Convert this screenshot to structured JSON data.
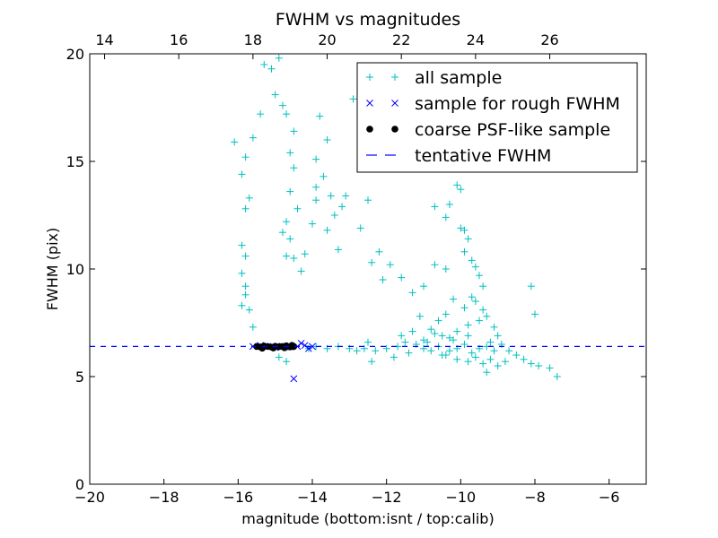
{
  "chart_data": {
    "type": "scatter",
    "title": "FWHM vs magnitudes",
    "xlabel": "magnitude (bottom:isnt / top:calib)",
    "ylabel": "FWHM (pix)",
    "xlim": [
      -20,
      -5
    ],
    "ylim": [
      0,
      20
    ],
    "x_ticks": [
      -20,
      -18,
      -16,
      -14,
      -12,
      -10,
      -8,
      -6
    ],
    "x_tick_labels": [
      "−20",
      "−18",
      "−16",
      "−14",
      "−12",
      "−10",
      "−8",
      "−6"
    ],
    "y_ticks": [
      0,
      5,
      10,
      15,
      20
    ],
    "y_tick_labels": [
      "0",
      "5",
      "10",
      "15",
      "20"
    ],
    "top_axis": {
      "label_note": "calib",
      "ticks": [
        14,
        16,
        18,
        20,
        22,
        24,
        26
      ],
      "tick_labels": [
        "14",
        "16",
        "18",
        "20",
        "22",
        "24",
        "26"
      ],
      "offset": 33.6
    },
    "legend_position": "upper-right",
    "series": [
      {
        "name": "all sample",
        "marker": "plus",
        "color": "#00BFBF",
        "points": [
          [
            -14.9,
            19.8
          ],
          [
            -15.1,
            19.3
          ],
          [
            -15.3,
            19.5
          ],
          [
            -15.0,
            18.1
          ],
          [
            -14.8,
            17.6
          ],
          [
            -14.7,
            17.2
          ],
          [
            -14.5,
            16.4
          ],
          [
            -15.4,
            17.2
          ],
          [
            -15.6,
            16.1
          ],
          [
            -15.8,
            15.2
          ],
          [
            -16.1,
            15.9
          ],
          [
            -15.9,
            14.4
          ],
          [
            -15.7,
            13.3
          ],
          [
            -15.8,
            12.8
          ],
          [
            -15.9,
            11.1
          ],
          [
            -15.8,
            10.6
          ],
          [
            -15.9,
            9.8
          ],
          [
            -15.8,
            9.2
          ],
          [
            -15.8,
            8.8
          ],
          [
            -15.9,
            8.3
          ],
          [
            -15.7,
            8.1
          ],
          [
            -15.6,
            7.3
          ],
          [
            -14.6,
            15.4
          ],
          [
            -14.5,
            14.7
          ],
          [
            -14.6,
            13.6
          ],
          [
            -14.4,
            12.8
          ],
          [
            -14.7,
            12.2
          ],
          [
            -14.6,
            11.4
          ],
          [
            -14.8,
            11.7
          ],
          [
            -14.7,
            10.6
          ],
          [
            -14.5,
            10.5
          ],
          [
            -14.3,
            9.9
          ],
          [
            -14.2,
            10.7
          ],
          [
            -13.8,
            17.1
          ],
          [
            -13.6,
            16.0
          ],
          [
            -13.9,
            15.1
          ],
          [
            -13.7,
            14.3
          ],
          [
            -13.5,
            13.4
          ],
          [
            -13.9,
            13.2
          ],
          [
            -13.4,
            12.5
          ],
          [
            -13.6,
            11.8
          ],
          [
            -13.2,
            12.9
          ],
          [
            -14.0,
            12.1
          ],
          [
            -13.9,
            13.8
          ],
          [
            -13.3,
            10.9
          ],
          [
            -13.1,
            13.4
          ],
          [
            -12.9,
            17.9
          ],
          [
            -12.1,
            16.0
          ],
          [
            -12.5,
            13.2
          ],
          [
            -12.7,
            11.9
          ],
          [
            -12.2,
            10.8
          ],
          [
            -12.4,
            10.3
          ],
          [
            -12.1,
            9.5
          ],
          [
            -11.9,
            10.2
          ],
          [
            -11.6,
            9.6
          ],
          [
            -11.3,
            8.9
          ],
          [
            -11.0,
            9.2
          ],
          [
            -10.7,
            10.2
          ],
          [
            -10.4,
            10.0
          ],
          [
            -10.7,
            12.9
          ],
          [
            -10.3,
            13.0
          ],
          [
            -10.1,
            13.9
          ],
          [
            -10.0,
            13.7
          ],
          [
            -10.4,
            12.4
          ],
          [
            -10.0,
            11.9
          ],
          [
            -9.9,
            11.8
          ],
          [
            -9.8,
            11.4
          ],
          [
            -9.7,
            10.4
          ],
          [
            -9.9,
            10.8
          ],
          [
            -9.6,
            10.1
          ],
          [
            -9.5,
            9.7
          ],
          [
            -9.4,
            9.2
          ],
          [
            -9.7,
            8.7
          ],
          [
            -9.9,
            8.2
          ],
          [
            -10.2,
            8.6
          ],
          [
            -10.4,
            7.9
          ],
          [
            -10.6,
            7.6
          ],
          [
            -10.8,
            7.2
          ],
          [
            -11.1,
            7.8
          ],
          [
            -11.3,
            7.1
          ],
          [
            -11.6,
            6.9
          ],
          [
            -9.6,
            8.5
          ],
          [
            -9.4,
            8.1
          ],
          [
            -9.3,
            7.8
          ],
          [
            -9.1,
            7.3
          ],
          [
            -9.0,
            6.9
          ],
          [
            -9.2,
            6.6
          ],
          [
            -9.5,
            7.6
          ],
          [
            -9.8,
            7.4
          ],
          [
            -10.1,
            7.1
          ],
          [
            -10.3,
            6.8
          ],
          [
            -10.5,
            6.9
          ],
          [
            -10.7,
            7.0
          ],
          [
            -11.0,
            6.7
          ],
          [
            -8.9,
            6.5
          ],
          [
            -8.7,
            6.2
          ],
          [
            -8.5,
            6.0
          ],
          [
            -8.3,
            5.8
          ],
          [
            -8.1,
            5.6
          ],
          [
            -7.9,
            5.5
          ],
          [
            -7.6,
            5.4
          ],
          [
            -7.4,
            5.0
          ],
          [
            -8.0,
            7.9
          ],
          [
            -8.1,
            9.2
          ],
          [
            -9.2,
            5.8
          ],
          [
            -9.4,
            5.6
          ],
          [
            -9.6,
            5.9
          ],
          [
            -9.8,
            5.7
          ],
          [
            -10.1,
            5.8
          ],
          [
            -10.4,
            6.0
          ],
          [
            -9.3,
            5.2
          ],
          [
            -9.0,
            5.5
          ],
          [
            -8.8,
            5.7
          ],
          [
            -12.6,
            6.3
          ],
          [
            -12.3,
            6.2
          ],
          [
            -12.0,
            6.3
          ],
          [
            -11.7,
            6.4
          ],
          [
            -11.4,
            6.1
          ],
          [
            -11.2,
            6.5
          ],
          [
            -11.0,
            6.3
          ],
          [
            -10.8,
            6.2
          ],
          [
            -10.6,
            6.4
          ],
          [
            -10.5,
            6.0
          ],
          [
            -10.3,
            6.2
          ],
          [
            -10.1,
            6.3
          ],
          [
            -9.9,
            6.5
          ],
          [
            -9.7,
            6.1
          ],
          [
            -9.5,
            6.3
          ],
          [
            -9.3,
            6.4
          ],
          [
            -9.1,
            6.2
          ],
          [
            -13.0,
            6.3
          ],
          [
            -13.3,
            6.4
          ],
          [
            -13.6,
            6.3
          ],
          [
            -13.9,
            6.4
          ],
          [
            -14.1,
            6.3
          ],
          [
            -12.8,
            6.2
          ],
          [
            -11.8,
            5.9
          ],
          [
            -11.5,
            6.6
          ],
          [
            -12.4,
            5.7
          ],
          [
            -14.7,
            5.7
          ],
          [
            -14.9,
            5.9
          ],
          [
            -12.5,
            6.6
          ],
          [
            -10.9,
            6.6
          ],
          [
            -10.2,
            6.7
          ],
          [
            -9.8,
            6.9
          ]
        ]
      },
      {
        "name": "sample for rough FWHM",
        "marker": "x",
        "color": "#0000FF",
        "points": [
          [
            -15.6,
            6.4
          ],
          [
            -15.4,
            6.45
          ],
          [
            -15.2,
            6.4
          ],
          [
            -15.0,
            6.35
          ],
          [
            -14.8,
            6.42
          ],
          [
            -14.6,
            6.38
          ],
          [
            -14.4,
            6.4
          ],
          [
            -14.2,
            6.45
          ],
          [
            -14.1,
            6.3
          ],
          [
            -14.0,
            6.4
          ],
          [
            -14.3,
            6.55
          ],
          [
            -14.5,
            4.9
          ]
        ]
      },
      {
        "name": "coarse PSF-like sample",
        "marker": "circle",
        "color": "#000000",
        "points": [
          [
            -15.5,
            6.4
          ],
          [
            -15.4,
            6.38
          ],
          [
            -15.3,
            6.42
          ],
          [
            -15.2,
            6.4
          ],
          [
            -15.1,
            6.37
          ],
          [
            -15.0,
            6.41
          ],
          [
            -14.9,
            6.39
          ],
          [
            -14.8,
            6.4
          ],
          [
            -14.7,
            6.43
          ],
          [
            -14.6,
            6.38
          ],
          [
            -14.5,
            6.4
          ],
          [
            -15.35,
            6.32
          ],
          [
            -15.05,
            6.33
          ],
          [
            -14.75,
            6.34
          ],
          [
            -14.55,
            6.45
          ]
        ]
      },
      {
        "name": "tentative FWHM",
        "marker": "dashed-line",
        "color": "#0000FF",
        "y": 6.4
      }
    ]
  }
}
